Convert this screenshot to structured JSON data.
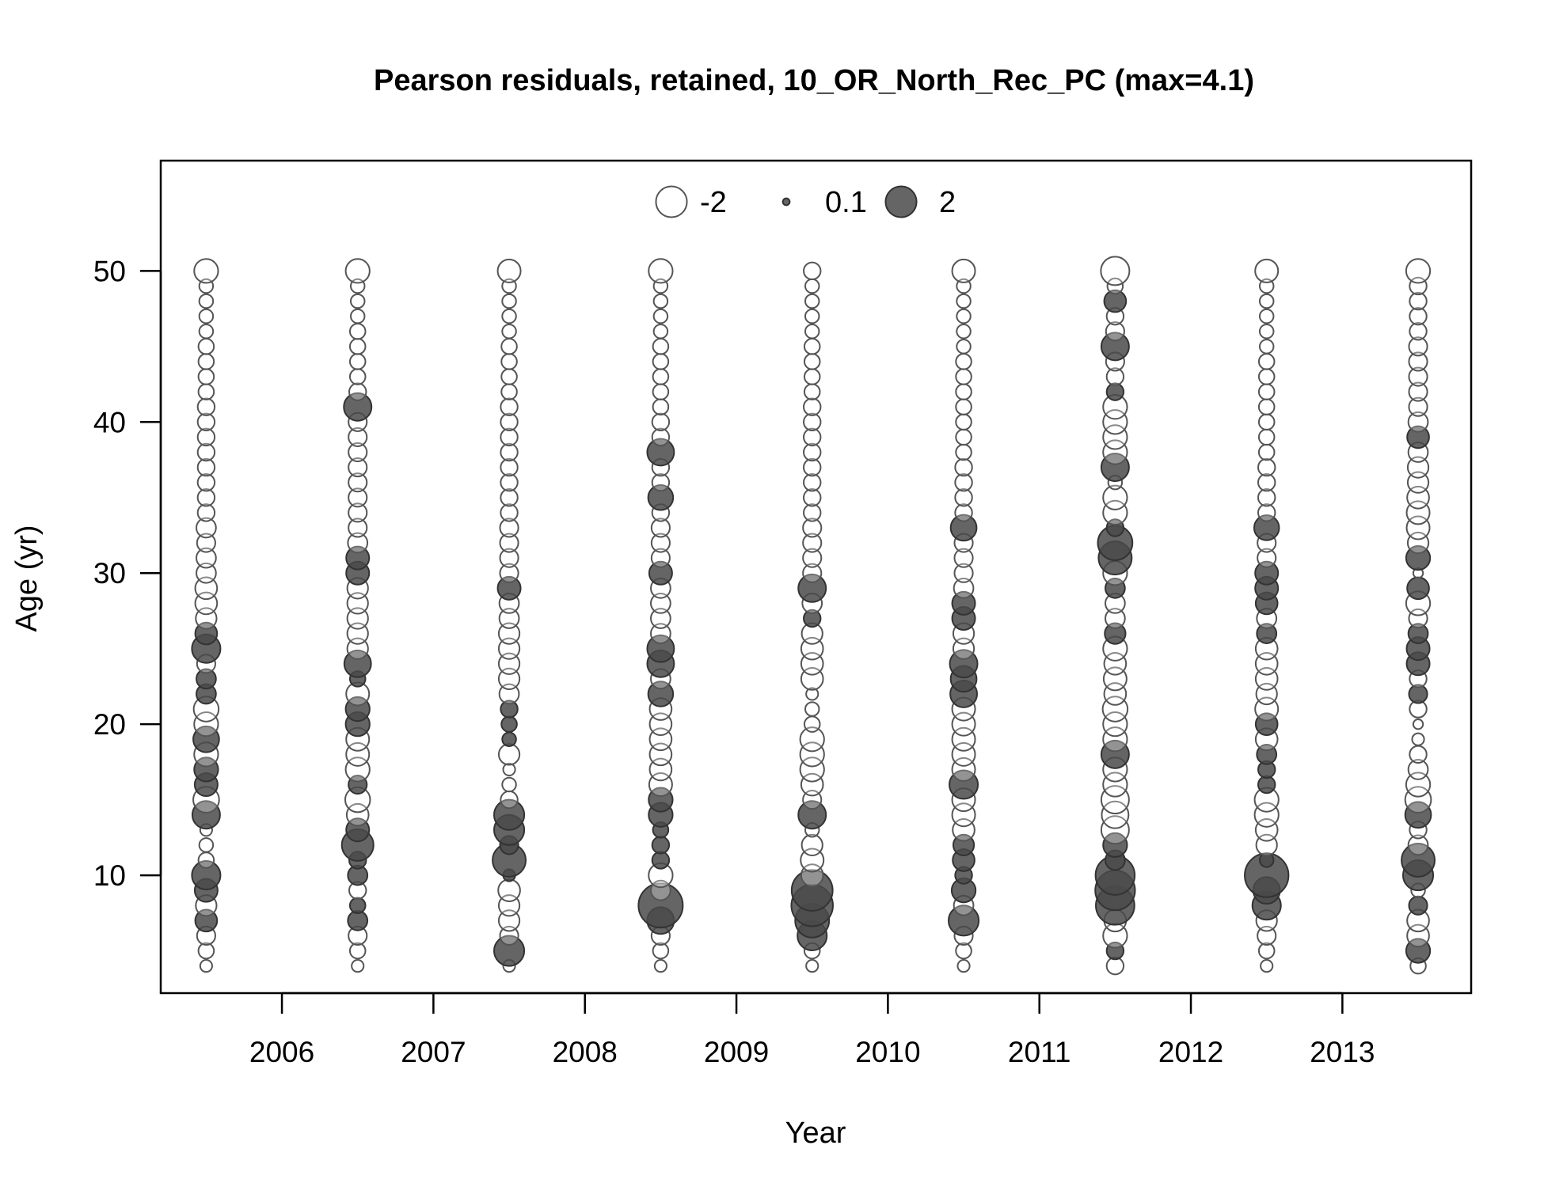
{
  "chart_data": {
    "type": "scatter",
    "title": "Pearson residuals, retained, 10_OR_North_Rec_PC (max=4.1)",
    "xlabel": "Year",
    "ylabel": "Age (yr)",
    "xlim": [
      2005.2,
      2013.85
    ],
    "ylim": [
      2.2,
      57.3
    ],
    "x_ticks": [
      2006,
      2007,
      2008,
      2009,
      2010,
      2011,
      2012,
      2013
    ],
    "y_ticks": [
      10,
      20,
      30,
      40,
      50
    ],
    "grid": false,
    "legend_placement": "top",
    "legend": [
      {
        "label": "-2",
        "value": -2
      },
      {
        "label": "0.1",
        "value": 0.1
      },
      {
        "label": "2",
        "value": 2
      }
    ],
    "max_abs_residual": 4.1,
    "colors": {
      "positive_fill": "#4a4a4a",
      "positive_stroke": "#333333",
      "negative_fill": "#ffffff",
      "negative_stroke": "#555555",
      "frame": "#000000"
    },
    "series": [
      {
        "x": 2005.5,
        "ages": [
          4,
          5,
          6,
          7,
          8,
          9,
          10,
          11,
          12,
          13,
          14,
          15,
          16,
          17,
          18,
          19,
          20,
          21,
          22,
          23,
          24,
          25,
          26,
          27,
          28,
          29,
          30,
          31,
          32,
          33,
          34,
          35,
          36,
          37,
          38,
          39,
          40,
          41,
          42,
          43,
          44,
          45,
          46,
          47,
          48,
          49,
          50
        ],
        "residuals": [
          -0.3,
          -0.5,
          -0.7,
          1.0,
          -0.9,
          1.1,
          1.7,
          -0.5,
          -0.4,
          -0.3,
          1.6,
          -1.4,
          1.1,
          1.2,
          -1.2,
          1.4,
          -1.2,
          -1.3,
          0.8,
          0.8,
          -0.7,
          1.7,
          1.0,
          -0.9,
          -1.0,
          -1.0,
          -0.8,
          -0.8,
          -0.7,
          -0.8,
          -0.6,
          -0.6,
          -0.6,
          -0.6,
          -0.6,
          -0.6,
          -0.6,
          -0.6,
          -0.5,
          -0.5,
          -0.5,
          -0.5,
          -0.4,
          -0.4,
          -0.4,
          -0.4,
          -1.2
        ]
      },
      {
        "x": 2006.5,
        "ages": [
          4,
          5,
          6,
          7,
          8,
          9,
          10,
          11,
          12,
          13,
          14,
          15,
          16,
          17,
          18,
          19,
          20,
          21,
          22,
          23,
          24,
          25,
          26,
          27,
          28,
          29,
          30,
          31,
          32,
          33,
          34,
          35,
          36,
          37,
          38,
          39,
          40,
          41,
          42,
          43,
          44,
          45,
          46,
          47,
          48,
          49,
          50
        ],
        "residuals": [
          -0.3,
          -0.5,
          -0.7,
          0.8,
          0.5,
          -0.6,
          0.8,
          0.6,
          2.1,
          1.1,
          -1.0,
          -1.3,
          0.7,
          -1.2,
          -1.1,
          -1.1,
          1.2,
          1.2,
          -1.1,
          0.5,
          1.5,
          -0.9,
          -0.9,
          -0.9,
          -0.9,
          -0.9,
          1.1,
          1.1,
          -0.8,
          -0.7,
          -0.7,
          -0.7,
          -0.7,
          -0.7,
          -0.7,
          -0.7,
          -0.7,
          1.6,
          -0.6,
          -0.5,
          -0.5,
          -0.5,
          -0.5,
          -0.4,
          -0.4,
          -0.4,
          -1.2
        ]
      },
      {
        "x": 2007.5,
        "ages": [
          4,
          5,
          6,
          7,
          8,
          9,
          10,
          11,
          12,
          13,
          14,
          15,
          16,
          17,
          18,
          19,
          20,
          21,
          22,
          23,
          24,
          25,
          26,
          27,
          28,
          29,
          30,
          31,
          32,
          33,
          34,
          35,
          36,
          37,
          38,
          39,
          40,
          41,
          42,
          43,
          44,
          45,
          46,
          47,
          48,
          49,
          50
        ],
        "residuals": [
          -0.3,
          1.9,
          -0.7,
          -0.9,
          -0.9,
          -1.0,
          0.3,
          2.3,
          0.7,
          1.9,
          1.9,
          -0.6,
          -0.4,
          -0.3,
          -0.9,
          0.4,
          0.5,
          0.6,
          -0.8,
          -0.9,
          -0.9,
          -0.9,
          -0.9,
          -0.8,
          -0.8,
          1.1,
          -0.7,
          -0.7,
          -0.7,
          -0.7,
          -0.6,
          -0.6,
          -0.6,
          -0.6,
          -0.6,
          -0.6,
          -0.6,
          -0.6,
          -0.5,
          -0.5,
          -0.5,
          -0.5,
          -0.4,
          -0.4,
          -0.4,
          -0.4,
          -1.1
        ]
      },
      {
        "x": 2008.5,
        "ages": [
          4,
          5,
          6,
          7,
          8,
          9,
          10,
          11,
          12,
          13,
          14,
          15,
          16,
          17,
          18,
          19,
          20,
          21,
          22,
          23,
          24,
          25,
          26,
          27,
          28,
          29,
          30,
          31,
          32,
          33,
          34,
          35,
          36,
          37,
          38,
          39,
          40,
          41,
          42,
          43,
          44,
          45,
          46,
          47,
          48,
          49,
          50
        ],
        "residuals": [
          -0.3,
          -0.5,
          -0.7,
          1.5,
          4.1,
          -0.8,
          -1.2,
          0.6,
          0.6,
          0.5,
          1.2,
          1.2,
          -1.1,
          -1.0,
          -1.0,
          -1.0,
          -1.0,
          -1.0,
          1.3,
          -0.8,
          1.5,
          1.5,
          -0.8,
          -0.8,
          -0.8,
          -0.8,
          1.1,
          -0.7,
          -0.7,
          -0.7,
          -0.6,
          1.3,
          -0.6,
          -0.6,
          1.5,
          -0.6,
          -0.6,
          -0.5,
          -0.5,
          -0.5,
          -0.5,
          -0.5,
          -0.4,
          -0.4,
          -0.4,
          -0.4,
          -1.2
        ]
      },
      {
        "x": 2009.5,
        "ages": [
          4,
          5,
          6,
          7,
          8,
          9,
          10,
          11,
          12,
          13,
          14,
          15,
          16,
          17,
          18,
          19,
          20,
          21,
          22,
          23,
          24,
          25,
          26,
          27,
          28,
          29,
          30,
          31,
          32,
          33,
          34,
          35,
          36,
          37,
          38,
          39,
          40,
          41,
          42,
          43,
          44,
          45,
          46,
          47,
          48,
          49,
          50
        ],
        "residuals": [
          -0.3,
          -0.5,
          1.8,
          2.4,
          3.6,
          3.5,
          -1.0,
          -1.1,
          -0.9,
          -0.4,
          1.6,
          -0.7,
          -1.0,
          -1.2,
          -1.2,
          -1.2,
          -0.5,
          -0.4,
          -0.3,
          -1.0,
          -1.0,
          -1.0,
          -0.9,
          0.6,
          -0.8,
          1.6,
          -0.7,
          -0.7,
          -0.7,
          -0.7,
          -0.6,
          -0.6,
          -0.6,
          -0.6,
          -0.6,
          -0.6,
          -0.6,
          -0.6,
          -0.5,
          -0.5,
          -0.5,
          -0.5,
          -0.4,
          -0.4,
          -0.4,
          -0.4,
          -0.6
        ]
      },
      {
        "x": 2010.5,
        "ages": [
          4,
          5,
          6,
          7,
          8,
          9,
          10,
          11,
          12,
          13,
          14,
          15,
          16,
          17,
          18,
          19,
          20,
          21,
          22,
          23,
          24,
          25,
          26,
          27,
          28,
          29,
          30,
          31,
          32,
          33,
          34,
          35,
          36,
          37,
          38,
          39,
          40,
          41,
          42,
          43,
          44,
          45,
          46,
          47,
          48,
          49,
          50
        ],
        "residuals": [
          -0.3,
          -0.5,
          -0.7,
          1.9,
          -0.8,
          1.2,
          0.6,
          1.0,
          0.9,
          -1.0,
          -1.1,
          -1.1,
          1.7,
          -1.1,
          -1.1,
          -1.1,
          -1.1,
          -1.1,
          1.5,
          1.4,
          1.6,
          -0.9,
          -0.9,
          1.1,
          1.1,
          -0.8,
          -0.7,
          -0.7,
          -0.7,
          1.4,
          -0.6,
          -0.6,
          -0.6,
          -0.6,
          -0.5,
          -0.5,
          -0.5,
          -0.5,
          -0.5,
          -0.5,
          -0.5,
          -0.4,
          -0.4,
          -0.4,
          -0.4,
          -0.4,
          -1.1
        ]
      },
      {
        "x": 2011.5,
        "ages": [
          4,
          5,
          6,
          7,
          8,
          9,
          10,
          11,
          12,
          13,
          14,
          15,
          16,
          17,
          18,
          19,
          20,
          21,
          22,
          23,
          24,
          25,
          26,
          27,
          28,
          29,
          30,
          31,
          32,
          33,
          34,
          35,
          36,
          37,
          38,
          39,
          40,
          41,
          42,
          43,
          44,
          45,
          46,
          47,
          48,
          49,
          50
        ],
        "residuals": [
          -0.6,
          0.6,
          -1.2,
          -1.0,
          3.1,
          3.3,
          3.2,
          0.8,
          1.2,
          -1.6,
          -1.5,
          -1.6,
          -1.2,
          -1.2,
          1.6,
          -1.2,
          -1.2,
          -1.3,
          -1.0,
          -1.1,
          -1.0,
          -1.2,
          0.9,
          -0.8,
          -0.8,
          0.8,
          -1.2,
          2.3,
          2.5,
          0.6,
          -1.2,
          -1.2,
          -0.4,
          1.6,
          -1.2,
          -1.2,
          -1.2,
          -1.2,
          0.6,
          -0.6,
          -0.7,
          1.6,
          -0.7,
          -0.6,
          1.0,
          -0.5,
          -1.7
        ]
      },
      {
        "x": 2012.5,
        "ages": [
          4,
          5,
          6,
          7,
          8,
          9,
          10,
          11,
          12,
          13,
          14,
          15,
          16,
          17,
          18,
          19,
          20,
          21,
          22,
          23,
          24,
          25,
          26,
          27,
          28,
          29,
          30,
          31,
          32,
          33,
          34,
          35,
          36,
          37,
          38,
          39,
          40,
          41,
          42,
          43,
          44,
          45,
          46,
          47,
          48,
          49,
          50
        ],
        "residuals": [
          -0.3,
          -0.5,
          -0.7,
          -0.9,
          1.7,
          1.5,
          4.0,
          0.4,
          -0.9,
          -1.0,
          -1.2,
          -1.2,
          0.6,
          0.6,
          0.8,
          -1.0,
          1.0,
          -1.1,
          -0.9,
          -1.0,
          -1.0,
          -1.0,
          0.8,
          -0.8,
          1.0,
          1.1,
          1.1,
          -0.7,
          -0.7,
          1.3,
          -0.6,
          -0.6,
          -0.6,
          -0.6,
          -0.5,
          -0.5,
          -0.5,
          -0.5,
          -0.5,
          -0.5,
          -0.5,
          -0.4,
          -0.4,
          -0.4,
          -0.4,
          -0.4,
          -1.1
        ]
      },
      {
        "x": 2013.5,
        "ages": [
          4,
          5,
          6,
          7,
          8,
          9,
          10,
          11,
          12,
          13,
          14,
          15,
          16,
          17,
          18,
          19,
          20,
          21,
          22,
          23,
          24,
          25,
          26,
          27,
          28,
          29,
          30,
          31,
          32,
          33,
          34,
          35,
          36,
          37,
          38,
          39,
          40,
          41,
          42,
          43,
          44,
          45,
          46,
          47,
          48,
          49,
          50
        ],
        "residuals": [
          -0.5,
          1.2,
          -1.0,
          -1.0,
          0.7,
          -0.4,
          1.9,
          2.3,
          -0.8,
          -0.6,
          1.4,
          -1.4,
          -1.2,
          -0.8,
          -0.6,
          -0.3,
          -0.2,
          -0.6,
          0.7,
          -0.6,
          1.1,
          1.1,
          0.8,
          -0.7,
          -1.2,
          1.0,
          -0.2,
          1.2,
          -0.9,
          -1.1,
          -1.1,
          -1.0,
          -0.9,
          -0.9,
          -0.8,
          1.0,
          -0.8,
          -0.7,
          -0.7,
          -0.7,
          -0.7,
          -0.7,
          -0.6,
          -0.6,
          -0.6,
          -0.6,
          -1.2
        ]
      }
    ]
  }
}
